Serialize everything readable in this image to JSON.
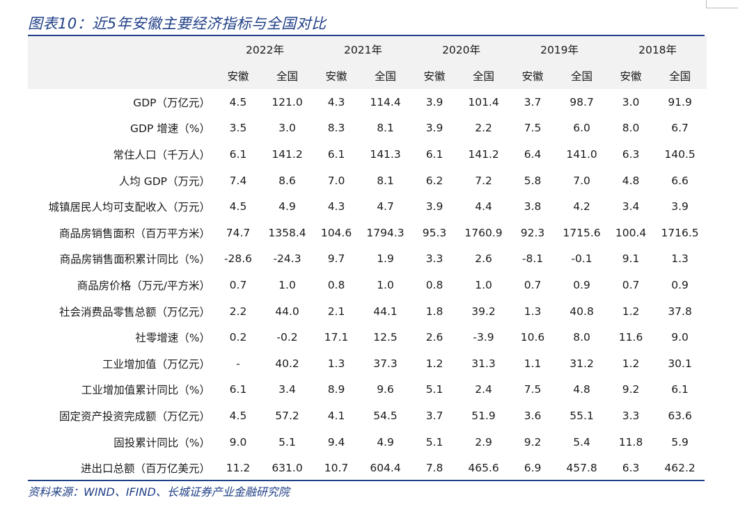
{
  "title": "图表10：近5年安徽主要经济指标与全国对比",
  "years": [
    "2022年",
    "2021年",
    "2020年",
    "2019年",
    "2018年"
  ],
  "sub_headers": [
    "安徽",
    "全国",
    "安徽",
    "全国",
    "安徽",
    "全国",
    "安徽",
    "全国",
    "安徽",
    "全国"
  ],
  "rows": [
    {
      "label": "GDP（万亿元）",
      "values": [
        "4.5",
        "121.0",
        "4.3",
        "114.4",
        "3.9",
        "101.4",
        "3.7",
        "98.7",
        "3.0",
        "91.9"
      ]
    },
    {
      "label": "GDP 增速（%）",
      "values": [
        "3.5",
        "3.0",
        "8.3",
        "8.1",
        "3.9",
        "2.2",
        "7.5",
        "6.0",
        "8.0",
        "6.7"
      ]
    },
    {
      "label": "常住人口（千万人）",
      "values": [
        "6.1",
        "141.2",
        "6.1",
        "141.3",
        "6.1",
        "141.2",
        "6.4",
        "141.0",
        "6.3",
        "140.5"
      ]
    },
    {
      "label": "人均 GDP（万元）",
      "values": [
        "7.4",
        "8.6",
        "7.0",
        "8.1",
        "6.2",
        "7.2",
        "5.8",
        "7.0",
        "4.8",
        "6.6"
      ]
    },
    {
      "label": "城镇居民人均可支配收入（万元）",
      "values": [
        "4.5",
        "4.9",
        "4.3",
        "4.7",
        "3.9",
        "4.4",
        "3.8",
        "4.2",
        "3.4",
        "3.9"
      ]
    },
    {
      "label": "商品房销售面积（百万平方米）",
      "values": [
        "74.7",
        "1358.4",
        "104.6",
        "1794.3",
        "95.3",
        "1760.9",
        "92.3",
        "1715.6",
        "100.4",
        "1716.5"
      ]
    },
    {
      "label": "商品房销售面积累计同比（%）",
      "values": [
        "-28.6",
        "-24.3",
        "9.7",
        "1.9",
        "3.3",
        "2.6",
        "-8.1",
        "-0.1",
        "9.1",
        "1.3"
      ]
    },
    {
      "label": "商品房价格（万元/平方米）",
      "values": [
        "0.7",
        "1.0",
        "0.8",
        "1.0",
        "0.8",
        "1.0",
        "0.7",
        "0.9",
        "0.7",
        "0.9"
      ]
    },
    {
      "label": "社会消费品零售总额（万亿元）",
      "values": [
        "2.2",
        "44.0",
        "2.1",
        "44.1",
        "1.8",
        "39.2",
        "1.3",
        "40.8",
        "1.2",
        "37.8"
      ]
    },
    {
      "label": "社零增速（%）",
      "values": [
        "0.2",
        "-0.2",
        "17.1",
        "12.5",
        "2.6",
        "-3.9",
        "10.6",
        "8.0",
        "11.6",
        "9.0"
      ]
    },
    {
      "label": "工业增加值（万亿元）",
      "values": [
        "-",
        "40.2",
        "1.3",
        "37.3",
        "1.2",
        "31.3",
        "1.1",
        "31.2",
        "1.2",
        "30.1"
      ]
    },
    {
      "label": "工业增加值累计同比（%）",
      "values": [
        "6.1",
        "3.4",
        "8.9",
        "9.6",
        "5.1",
        "2.4",
        "7.5",
        "4.8",
        "9.2",
        "6.1"
      ]
    },
    {
      "label": "固定资产投资完成额（万亿元）",
      "values": [
        "4.5",
        "57.2",
        "4.1",
        "54.5",
        "3.7",
        "51.9",
        "3.6",
        "55.1",
        "3.3",
        "63.6"
      ]
    },
    {
      "label": "固投累计同比（%）",
      "values": [
        "9.0",
        "5.1",
        "9.4",
        "4.9",
        "5.1",
        "2.9",
        "9.2",
        "5.4",
        "11.8",
        "5.9"
      ]
    },
    {
      "label": "进出口总额（百万亿美元）",
      "values": [
        "11.2",
        "631.0",
        "10.7",
        "604.4",
        "7.8",
        "465.6",
        "6.9",
        "457.8",
        "6.3",
        "462.2"
      ]
    }
  ],
  "source": "资料来源：WIND、IFIND、长城证券产业金融研究院",
  "colors": {
    "accent": "#1f3f86",
    "header_bg": "#f2f2f2"
  }
}
